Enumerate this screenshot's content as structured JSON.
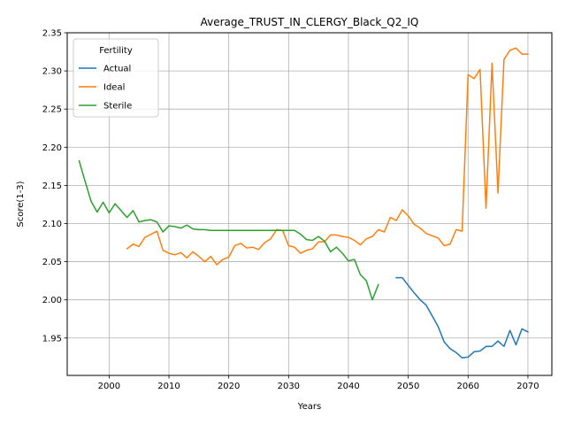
{
  "chart_data": {
    "type": "line",
    "title": "Average_TRUST_IN_CLERGY_Black_Q2_IQ",
    "xlabel": "Years",
    "ylabel": "Score(1-3)",
    "xlim": [
      1993,
      2074
    ],
    "ylim": [
      1.901,
      2.35
    ],
    "x_ticks": [
      2000,
      2010,
      2020,
      2030,
      2040,
      2050,
      2060,
      2070
    ],
    "y_ticks": [
      1.95,
      2.0,
      2.05,
      2.1,
      2.15,
      2.2,
      2.25,
      2.3,
      2.35
    ],
    "grid": true,
    "legend": {
      "title": "Fertility",
      "position": "top-left"
    },
    "series": [
      {
        "name": "Actual",
        "color": "#1f77b4",
        "points": [
          [
            2048,
            2.029
          ],
          [
            2049,
            2.029
          ],
          [
            2050,
            2.019
          ],
          [
            2051,
            2.009
          ],
          [
            2052,
            2.0
          ],
          [
            2053,
            1.993
          ],
          [
            2054,
            1.979
          ],
          [
            2055,
            1.965
          ],
          [
            2056,
            1.945
          ],
          [
            2057,
            1.936
          ],
          [
            2058,
            1.931
          ],
          [
            2059,
            1.924
          ],
          [
            2060,
            1.925
          ],
          [
            2061,
            1.932
          ],
          [
            2062,
            1.933
          ],
          [
            2063,
            1.939
          ],
          [
            2064,
            1.939
          ],
          [
            2065,
            1.946
          ],
          [
            2066,
            1.939
          ],
          [
            2067,
            1.96
          ],
          [
            2068,
            1.941
          ],
          [
            2069,
            1.962
          ],
          [
            2070,
            1.958
          ]
        ]
      },
      {
        "name": "Ideal",
        "color": "#ff7f0e",
        "points": [
          [
            2003,
            2.067
          ],
          [
            2004,
            2.073
          ],
          [
            2005,
            2.07
          ],
          [
            2006,
            2.082
          ],
          [
            2007,
            2.086
          ],
          [
            2008,
            2.09
          ],
          [
            2009,
            2.065
          ],
          [
            2010,
            2.061
          ],
          [
            2011,
            2.059
          ],
          [
            2012,
            2.062
          ],
          [
            2013,
            2.055
          ],
          [
            2014,
            2.063
          ],
          [
            2015,
            2.057
          ],
          [
            2016,
            2.05
          ],
          [
            2017,
            2.057
          ],
          [
            2018,
            2.046
          ],
          [
            2019,
            2.053
          ],
          [
            2020,
            2.056
          ],
          [
            2021,
            2.071
          ],
          [
            2022,
            2.074
          ],
          [
            2023,
            2.068
          ],
          [
            2024,
            2.069
          ],
          [
            2025,
            2.066
          ],
          [
            2026,
            2.075
          ],
          [
            2027,
            2.08
          ],
          [
            2028,
            2.092
          ],
          [
            2029,
            2.091
          ],
          [
            2030,
            2.071
          ],
          [
            2031,
            2.069
          ],
          [
            2032,
            2.061
          ],
          [
            2033,
            2.065
          ],
          [
            2034,
            2.067
          ],
          [
            2035,
            2.076
          ],
          [
            2036,
            2.076
          ],
          [
            2037,
            2.085
          ],
          [
            2038,
            2.085
          ],
          [
            2039,
            2.083
          ],
          [
            2040,
            2.082
          ],
          [
            2041,
            2.078
          ],
          [
            2042,
            2.072
          ],
          [
            2043,
            2.08
          ],
          [
            2044,
            2.083
          ],
          [
            2045,
            2.092
          ],
          [
            2046,
            2.089
          ],
          [
            2047,
            2.108
          ],
          [
            2048,
            2.104
          ],
          [
            2049,
            2.118
          ],
          [
            2050,
            2.11
          ],
          [
            2051,
            2.099
          ],
          [
            2052,
            2.094
          ],
          [
            2053,
            2.087
          ],
          [
            2054,
            2.084
          ],
          [
            2055,
            2.081
          ],
          [
            2056,
            2.071
          ],
          [
            2057,
            2.073
          ],
          [
            2058,
            2.092
          ],
          [
            2059,
            2.09
          ],
          [
            2060,
            2.295
          ],
          [
            2061,
            2.29
          ],
          [
            2062,
            2.302
          ],
          [
            2063,
            2.12
          ],
          [
            2064,
            2.31
          ],
          [
            2065,
            2.14
          ],
          [
            2066,
            2.315
          ],
          [
            2067,
            2.327
          ],
          [
            2068,
            2.33
          ],
          [
            2069,
            2.322
          ],
          [
            2070,
            2.322
          ]
        ]
      },
      {
        "name": "Sterile",
        "color": "#2ca02c",
        "points": [
          [
            1995,
            2.182
          ],
          [
            1996,
            2.155
          ],
          [
            1997,
            2.129
          ],
          [
            1998,
            2.115
          ],
          [
            1999,
            2.128
          ],
          [
            2000,
            2.114
          ],
          [
            2001,
            2.126
          ],
          [
            2002,
            2.117
          ],
          [
            2003,
            2.108
          ],
          [
            2004,
            2.117
          ],
          [
            2005,
            2.102
          ],
          [
            2006,
            2.104
          ],
          [
            2007,
            2.105
          ],
          [
            2008,
            2.102
          ],
          [
            2009,
            2.089
          ],
          [
            2010,
            2.097
          ],
          [
            2011,
            2.096
          ],
          [
            2012,
            2.094
          ],
          [
            2013,
            2.098
          ],
          [
            2014,
            2.093
          ],
          [
            2015,
            2.092
          ],
          [
            2016,
            2.092
          ],
          [
            2017,
            2.091
          ],
          [
            2018,
            2.091
          ],
          [
            2019,
            2.091
          ],
          [
            2020,
            2.091
          ],
          [
            2021,
            2.091
          ],
          [
            2022,
            2.091
          ],
          [
            2023,
            2.091
          ],
          [
            2024,
            2.091
          ],
          [
            2025,
            2.091
          ],
          [
            2026,
            2.091
          ],
          [
            2027,
            2.091
          ],
          [
            2028,
            2.091
          ],
          [
            2029,
            2.091
          ],
          [
            2030,
            2.091
          ],
          [
            2031,
            2.091
          ],
          [
            2032,
            2.086
          ],
          [
            2033,
            2.079
          ],
          [
            2034,
            2.078
          ],
          [
            2035,
            2.083
          ],
          [
            2036,
            2.077
          ],
          [
            2037,
            2.063
          ],
          [
            2038,
            2.069
          ],
          [
            2039,
            2.061
          ],
          [
            2040,
            2.051
          ],
          [
            2041,
            2.053
          ],
          [
            2042,
            2.033
          ],
          [
            2043,
            2.025
          ],
          [
            2044,
            2.0
          ],
          [
            2045,
            2.02
          ]
        ]
      }
    ]
  }
}
